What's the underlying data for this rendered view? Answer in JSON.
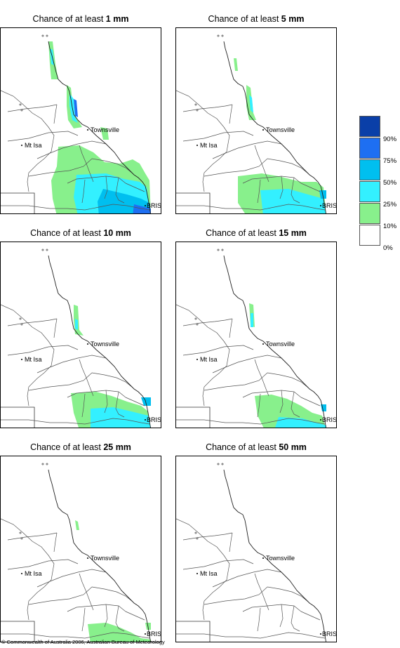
{
  "panels": [
    {
      "prefix": "Chance of at least ",
      "amount": "1 mm",
      "id": "1mm"
    },
    {
      "prefix": "Chance of at least ",
      "amount": "5 mm",
      "id": "5mm"
    },
    {
      "prefix": "Chance of at least ",
      "amount": "10 mm",
      "id": "10mm"
    },
    {
      "prefix": "Chance of at least ",
      "amount": "15 mm",
      "id": "15mm"
    },
    {
      "prefix": "Chance of at least ",
      "amount": "25 mm",
      "id": "25mm"
    },
    {
      "prefix": "Chance of at least ",
      "amount": "50 mm",
      "id": "50mm"
    }
  ],
  "places": {
    "townsville": "Townsville",
    "mt_isa": "Mt Isa",
    "brisbane": "BRIS"
  },
  "legend": {
    "labels": [
      "90%",
      "75%",
      "50%",
      "25%",
      "10%",
      "0%"
    ],
    "colors": {
      "over_90": "#0a3fa8",
      "75_90": "#1e6ff2",
      "50_75": "#00bfef",
      "25_50": "#33f0ff",
      "10_25": "#88f08c",
      "0_10": "#ffffff"
    }
  },
  "copyright": "© Commonwealth of Australia 2006, Australian Bureau of Meteorology"
}
